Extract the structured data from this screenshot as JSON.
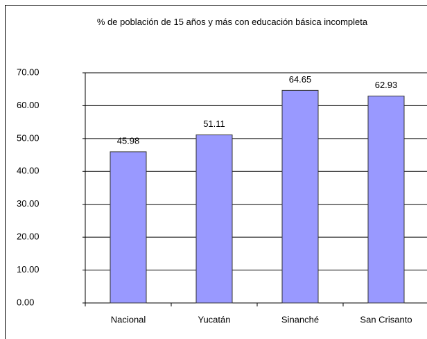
{
  "chart_data": {
    "type": "bar",
    "title": "% de población de 15 años y más con educación básica incompleta",
    "categories": [
      "Nacional",
      "Yucatán",
      "Sinanché",
      "San Crisanto"
    ],
    "values": [
      45.98,
      51.11,
      64.65,
      62.93
    ],
    "color": "#9999ff",
    "ylim": [
      0,
      70
    ],
    "yticks": [
      {
        "value": 0,
        "label": "0.00"
      },
      {
        "value": 10,
        "label": "10.00"
      },
      {
        "value": 20,
        "label": "20.00"
      },
      {
        "value": 30,
        "label": "30.00"
      },
      {
        "value": 40,
        "label": "40.00"
      },
      {
        "value": 50,
        "label": "50.00"
      },
      {
        "value": 60,
        "label": "60.00"
      },
      {
        "value": 70,
        "label": "70.00"
      }
    ],
    "grid": true
  }
}
